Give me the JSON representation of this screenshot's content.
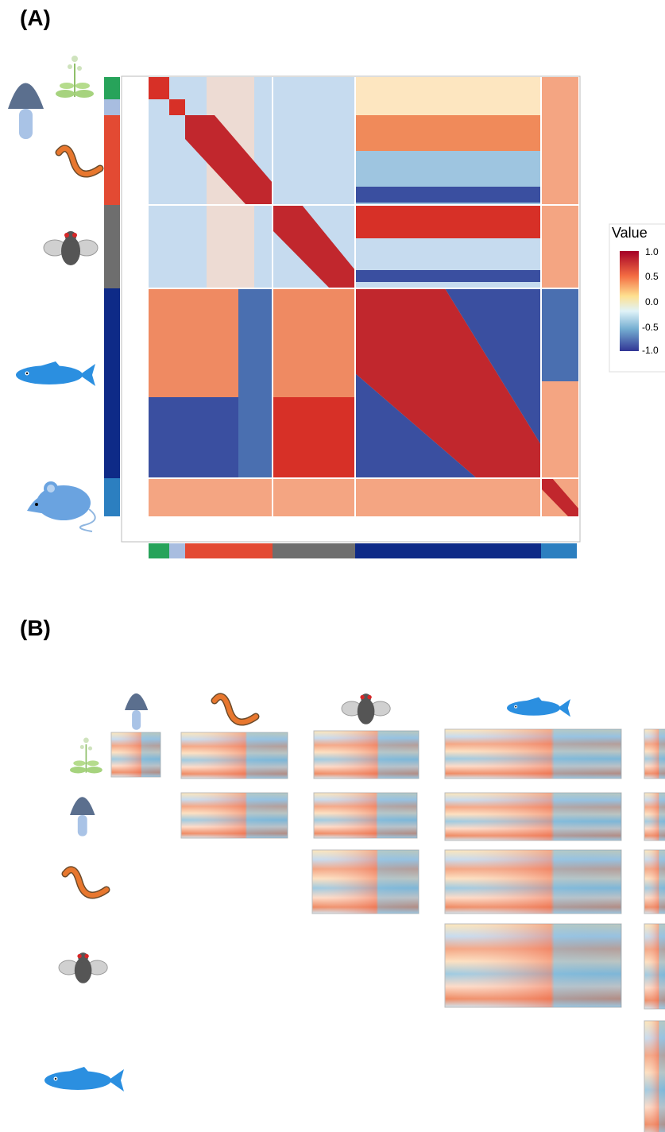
{
  "panel_a": {
    "label": "(A)",
    "legend": {
      "title": "Value",
      "ticks": [
        "1.0",
        "0.5",
        "0.0",
        "-0.5",
        "-1.0"
      ]
    }
  },
  "panel_b": {
    "label": "(B)"
  }
}
